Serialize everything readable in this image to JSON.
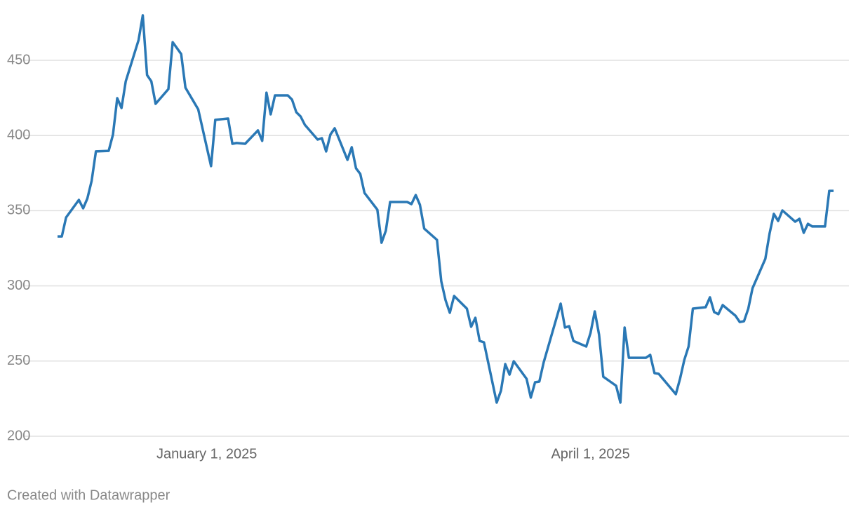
{
  "chart_data": {
    "type": "line",
    "credit": "Created with Datawrapper",
    "x": [
      "2024-11-27",
      "2024-11-28",
      "2024-11-29",
      "2024-12-02",
      "2024-12-03",
      "2024-12-04",
      "2024-12-05",
      "2024-12-06",
      "2024-12-09",
      "2024-12-10",
      "2024-12-11",
      "2024-12-12",
      "2024-12-13",
      "2024-12-16",
      "2024-12-17",
      "2024-12-18",
      "2024-12-19",
      "2024-12-20",
      "2024-12-23",
      "2024-12-24",
      "2024-12-26",
      "2024-12-27",
      "2024-12-30",
      "2025-01-02",
      "2025-01-03",
      "2025-01-06",
      "2025-01-07",
      "2025-01-08",
      "2025-01-10",
      "2025-01-13",
      "2025-01-14",
      "2025-01-15",
      "2025-01-16",
      "2025-01-17",
      "2025-01-20",
      "2025-01-21",
      "2025-01-22",
      "2025-01-23",
      "2025-01-24",
      "2025-01-27",
      "2025-01-28",
      "2025-01-29",
      "2025-01-30",
      "2025-01-31",
      "2025-02-03",
      "2025-02-04",
      "2025-02-05",
      "2025-02-06",
      "2025-02-07",
      "2025-02-10",
      "2025-02-11",
      "2025-02-12",
      "2025-02-13",
      "2025-02-17",
      "2025-02-18",
      "2025-02-19",
      "2025-02-20",
      "2025-02-21",
      "2025-02-24",
      "2025-02-25",
      "2025-02-26",
      "2025-02-27",
      "2025-02-28",
      "2025-03-03",
      "2025-03-04",
      "2025-03-05",
      "2025-03-06",
      "2025-03-07",
      "2025-03-10",
      "2025-03-11",
      "2025-03-12",
      "2025-03-13",
      "2025-03-14",
      "2025-03-17",
      "2025-03-18",
      "2025-03-19",
      "2025-03-20",
      "2025-03-21",
      "2025-03-25",
      "2025-03-26",
      "2025-03-27",
      "2025-03-28",
      "2025-03-31",
      "2025-04-01",
      "2025-04-02",
      "2025-04-03",
      "2025-04-04",
      "2025-04-07",
      "2025-04-08",
      "2025-04-09",
      "2025-04-10",
      "2025-04-14",
      "2025-04-15",
      "2025-04-16",
      "2025-04-17",
      "2025-04-21",
      "2025-04-22",
      "2025-04-23",
      "2025-04-24",
      "2025-04-25",
      "2025-04-28",
      "2025-04-29",
      "2025-04-30",
      "2025-05-01",
      "2025-05-02",
      "2025-05-05",
      "2025-05-06",
      "2025-05-07",
      "2025-05-08",
      "2025-05-09",
      "2025-05-12",
      "2025-05-13",
      "2025-05-14",
      "2025-05-15",
      "2025-05-16",
      "2025-05-19",
      "2025-05-20",
      "2025-05-21",
      "2025-05-22",
      "2025-05-23",
      "2025-05-26",
      "2025-05-27",
      "2025-05-28"
    ],
    "series": [
      {
        "color": "#2a78b5",
        "values": [
          332.9,
          332.9,
          345.5,
          357.2,
          351.6,
          358.1,
          369.8,
          389.4,
          389.8,
          400.6,
          424.8,
          418.3,
          436.0,
          463.5,
          479.9,
          440.2,
          436.0,
          421.1,
          430.9,
          462.1,
          454.2,
          431.8,
          417.4,
          379.6,
          410.4,
          411.3,
          394.5,
          395.0,
          394.5,
          403.4,
          396.4,
          428.5,
          414.1,
          426.7,
          426.7,
          423.9,
          415.5,
          412.7,
          407.1,
          397.3,
          398.2,
          389.4,
          400.6,
          404.8,
          383.8,
          392.2,
          378.2,
          374.4,
          361.8,
          350.7,
          328.7,
          336.7,
          355.8,
          355.8,
          354.4,
          360.4,
          353.9,
          338.1,
          330.6,
          303.1,
          290.5,
          282.1,
          293.3,
          284.9,
          272.8,
          278.8,
          263.4,
          262.5,
          222.4,
          230.3,
          248.0,
          241.0,
          249.9,
          238.2,
          225.7,
          235.9,
          236.4,
          249.0,
          288.2,
          272.3,
          273.2,
          263.4,
          259.7,
          268.6,
          283.0,
          267.6,
          239.6,
          233.6,
          222.4,
          272.3,
          252.2,
          252.2,
          254.1,
          242.0,
          241.5,
          228.0,
          238.2,
          250.8,
          259.7,
          284.9,
          285.8,
          292.4,
          282.6,
          281.2,
          287.2,
          280.2,
          276.0,
          276.5,
          284.9,
          298.4,
          318.0,
          334.8,
          347.9,
          343.2,
          350.2,
          342.7,
          344.6,
          335.3,
          341.3,
          339.5,
          339.5,
          363.2,
          363.2
        ]
      }
    ],
    "xlim": [
      "2024-11-27",
      "2025-05-28"
    ],
    "xticks": [
      {
        "value": "2025-01-01",
        "label": "January 1, 2025"
      },
      {
        "value": "2025-04-01",
        "label": "April 1, 2025"
      }
    ],
    "ylim": [
      200,
      450
    ],
    "yticks": [
      200,
      250,
      300,
      350,
      400,
      450
    ],
    "grid": true
  }
}
